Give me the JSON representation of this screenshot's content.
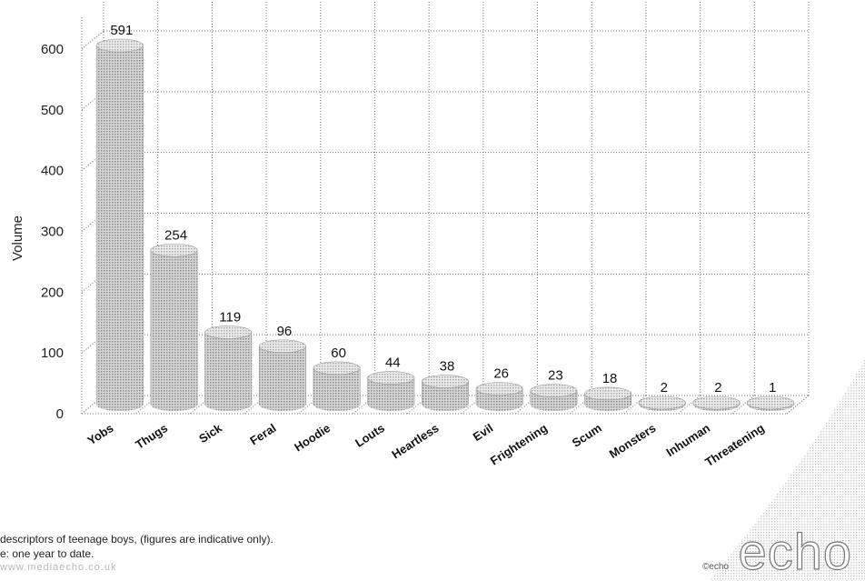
{
  "chart_data": {
    "type": "bar",
    "title": "",
    "xlabel": "",
    "ylabel": "Volume",
    "ylim": [
      0,
      600
    ],
    "yticks": [
      "0",
      "100",
      "200",
      "300",
      "400",
      "500",
      "600"
    ],
    "grid": true,
    "categories": [
      "Yobs",
      "Thugs",
      "Sick",
      "Feral",
      "Hoodie",
      "Louts",
      "Heartless",
      "Evil",
      "Frightening",
      "Scum",
      "Monsters",
      "Inhuman",
      "Threatening"
    ],
    "values": [
      591,
      254,
      119,
      96,
      60,
      44,
      38,
      26,
      23,
      18,
      2,
      2,
      1
    ],
    "value_labels": [
      "591",
      "254",
      "119",
      "96",
      "60",
      "44",
      "38",
      "26",
      "23",
      "18",
      "2",
      "2",
      "1"
    ],
    "bar_color": "#b5b5b5"
  },
  "footer": {
    "line1": "descriptors of teenage boys, (figures are indicative only).",
    "line2": "e: one year to date.",
    "line3": "www.mediaecho.co.uk"
  },
  "logo": {
    "small": "©echo",
    "big": "echo"
  }
}
